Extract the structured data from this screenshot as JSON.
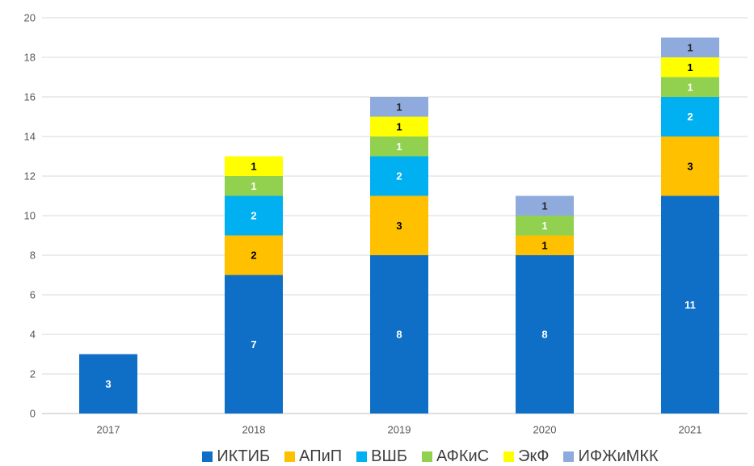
{
  "chart_data": {
    "type": "bar",
    "stacked": true,
    "categories": [
      "2017",
      "2018",
      "2019",
      "2020",
      "2021"
    ],
    "series": [
      {
        "name": "ИКТИБ",
        "color": "#0F6FC6",
        "label_color": "#FFFFFF",
        "values": [
          3,
          7,
          8,
          8,
          11
        ]
      },
      {
        "name": "АПиП",
        "color": "#FFC000",
        "label_color": "#000000",
        "values": [
          0,
          2,
          3,
          1,
          3
        ]
      },
      {
        "name": "ВШБ",
        "color": "#00B0F0",
        "label_color": "#FFFFFF",
        "values": [
          0,
          2,
          2,
          0,
          2
        ]
      },
      {
        "name": "АФКиС",
        "color": "#92D050",
        "label_color": "#FFFFFF",
        "values": [
          0,
          1,
          1,
          1,
          1
        ]
      },
      {
        "name": "ЭкФ",
        "color": "#FFFF00",
        "label_color": "#000000",
        "values": [
          0,
          1,
          1,
          0,
          1
        ]
      },
      {
        "name": "ИФЖиМКК",
        "color": "#8FAADC",
        "label_color": "#262626",
        "values": [
          0,
          0,
          1,
          1,
          1
        ]
      }
    ],
    "ylim": [
      0,
      20
    ],
    "yticks": [
      0,
      2,
      4,
      6,
      8,
      10,
      12,
      14,
      16,
      18,
      20
    ],
    "grid": true,
    "data_labels": true,
    "legend": "bottom"
  }
}
